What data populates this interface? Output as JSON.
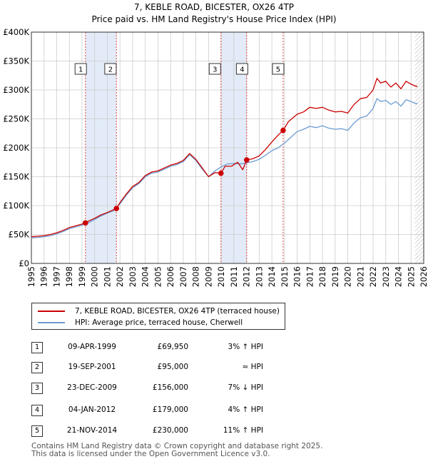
{
  "colors": {
    "price_line": "#cc0000",
    "hpi_line": "#6b9bd2",
    "shade": "#dbe6f5",
    "grid": "#cccccc",
    "marker": "#cc0000"
  },
  "chart_data": {
    "type": "line",
    "title": "7, KEBLE ROAD, BICESTER, OX26 4TP",
    "subtitle": "Price paid vs. HM Land Registry's House Price Index (HPI)",
    "ylim": [
      0,
      400000
    ],
    "xlim": [
      1995,
      2026
    ],
    "y_ticks": [
      0,
      50000,
      100000,
      150000,
      200000,
      250000,
      300000,
      350000,
      400000
    ],
    "y_tick_labels": [
      "£0",
      "£50K",
      "£100K",
      "£150K",
      "£200K",
      "£250K",
      "£300K",
      "£350K",
      "£400K"
    ],
    "x_ticks": [
      1995,
      1996,
      1997,
      1998,
      1999,
      2000,
      2001,
      2002,
      2003,
      2004,
      2005,
      2006,
      2007,
      2008,
      2009,
      2010,
      2011,
      2012,
      2013,
      2014,
      2015,
      2016,
      2017,
      2018,
      2019,
      2020,
      2021,
      2022,
      2023,
      2024,
      2025,
      2026
    ],
    "shaded_ranges": [
      [
        1999.27,
        2001.72
      ],
      [
        2009.98,
        2012.01
      ]
    ],
    "hatched_from": 2025.3,
    "series": [
      {
        "name": "7, KEBLE ROAD, BICESTER, OX26 4TP (terraced house)",
        "x": [
          1995,
          1995.5,
          1996,
          1996.5,
          1997,
          1997.5,
          1998,
          1998.5,
          1999,
          1999.27,
          1999.5,
          2000,
          2000.5,
          2001,
          2001.5,
          2001.72,
          2002,
          2002.5,
          2003,
          2003.5,
          2004,
          2004.5,
          2005,
          2005.5,
          2006,
          2006.5,
          2007,
          2007.5,
          2008,
          2008.5,
          2009,
          2009.5,
          2009.98,
          2010.3,
          2010.8,
          2011.3,
          2011.7,
          2012.01,
          2012.5,
          2013,
          2013.5,
          2014,
          2014.5,
          2014.89,
          2015.3,
          2016,
          2016.5,
          2017,
          2017.5,
          2018,
          2018.5,
          2019,
          2019.5,
          2020,
          2020.5,
          2021,
          2021.5,
          2022,
          2022.3,
          2022.6,
          2023,
          2023.4,
          2023.8,
          2024.2,
          2024.6,
          2025,
          2025.4,
          2025.5
        ],
        "values": [
          46000,
          47000,
          48000,
          50000,
          53000,
          57000,
          62000,
          65000,
          68000,
          69950,
          73000,
          78000,
          84000,
          88000,
          93000,
          95000,
          105000,
          120000,
          133000,
          140000,
          152000,
          158000,
          160000,
          165000,
          170000,
          173000,
          178000,
          190000,
          180000,
          165000,
          150000,
          157000,
          156000,
          168000,
          168000,
          175000,
          162000,
          179000,
          181000,
          186000,
          197000,
          210000,
          222000,
          230000,
          245000,
          258000,
          262000,
          270000,
          268000,
          270000,
          265000,
          262000,
          263000,
          260000,
          275000,
          285000,
          287000,
          300000,
          320000,
          312000,
          315000,
          305000,
          312000,
          302000,
          315000,
          310000,
          306000,
          307000
        ]
      },
      {
        "name": "HPI: Average price, terraced house, Cherwell",
        "x": [
          1995,
          1995.5,
          1996,
          1996.5,
          1997,
          1997.5,
          1998,
          1998.5,
          1999,
          1999.5,
          2000,
          2000.5,
          2001,
          2001.5,
          2002,
          2002.5,
          2003,
          2003.5,
          2004,
          2004.5,
          2005,
          2005.5,
          2006,
          2006.5,
          2007,
          2007.5,
          2008,
          2008.5,
          2009,
          2009.5,
          2010,
          2010.5,
          2011,
          2011.5,
          2012,
          2012.5,
          2013,
          2013.5,
          2014,
          2014.5,
          2015,
          2015.5,
          2016,
          2016.5,
          2017,
          2017.5,
          2018,
          2018.5,
          2019,
          2019.5,
          2020,
          2020.5,
          2021,
          2021.5,
          2022,
          2022.3,
          2022.6,
          2023,
          2023.4,
          2023.8,
          2024.2,
          2024.6,
          2025,
          2025.4,
          2025.5
        ],
        "values": [
          44000,
          45000,
          46000,
          48000,
          51000,
          55000,
          60000,
          63000,
          66000,
          70000,
          76000,
          82000,
          87000,
          91000,
          103000,
          118000,
          131000,
          138000,
          150000,
          156000,
          158000,
          163000,
          168000,
          171000,
          176000,
          188000,
          178000,
          163000,
          150000,
          160000,
          167000,
          172000,
          173000,
          172000,
          174000,
          176000,
          180000,
          187000,
          195000,
          200000,
          208000,
          218000,
          228000,
          232000,
          237000,
          235000,
          238000,
          234000,
          232000,
          233000,
          230000,
          243000,
          252000,
          255000,
          268000,
          285000,
          280000,
          282000,
          275000,
          280000,
          272000,
          283000,
          280000,
          276000,
          277000
        ]
      }
    ],
    "sale_points": [
      {
        "label": "1",
        "x": 1999.27,
        "y": 69950
      },
      {
        "label": "2",
        "x": 2001.72,
        "y": 95000
      },
      {
        "label": "3",
        "x": 2009.98,
        "y": 156000
      },
      {
        "label": "4",
        "x": 2012.01,
        "y": 179000
      },
      {
        "label": "5",
        "x": 2014.89,
        "y": 230000
      }
    ],
    "marker_labels": [
      {
        "label": "1",
        "x": 1998.9
      },
      {
        "label": "2",
        "x": 2001.25
      },
      {
        "label": "3",
        "x": 2009.5
      },
      {
        "label": "4",
        "x": 2011.65
      },
      {
        "label": "5",
        "x": 2014.5
      }
    ]
  },
  "legend": {
    "price_label": "7, KEBLE ROAD, BICESTER, OX26 4TP (terraced house)",
    "hpi_label": "HPI: Average price, terraced house, Cherwell"
  },
  "sales": [
    {
      "num": "1",
      "date": "09-APR-1999",
      "price": "£69,950",
      "hpi": "3% ↑ HPI"
    },
    {
      "num": "2",
      "date": "19-SEP-2001",
      "price": "£95,000",
      "hpi": "≈ HPI"
    },
    {
      "num": "3",
      "date": "23-DEC-2009",
      "price": "£156,000",
      "hpi": "7% ↓ HPI"
    },
    {
      "num": "4",
      "date": "04-JAN-2012",
      "price": "£179,000",
      "hpi": "4% ↑ HPI"
    },
    {
      "num": "5",
      "date": "21-NOV-2014",
      "price": "£230,000",
      "hpi": "11% ↑ HPI"
    }
  ],
  "footer": {
    "line1": "Contains HM Land Registry data © Crown copyright and database right 2025.",
    "line2": "This data is licensed under the Open Government Licence v3.0."
  }
}
